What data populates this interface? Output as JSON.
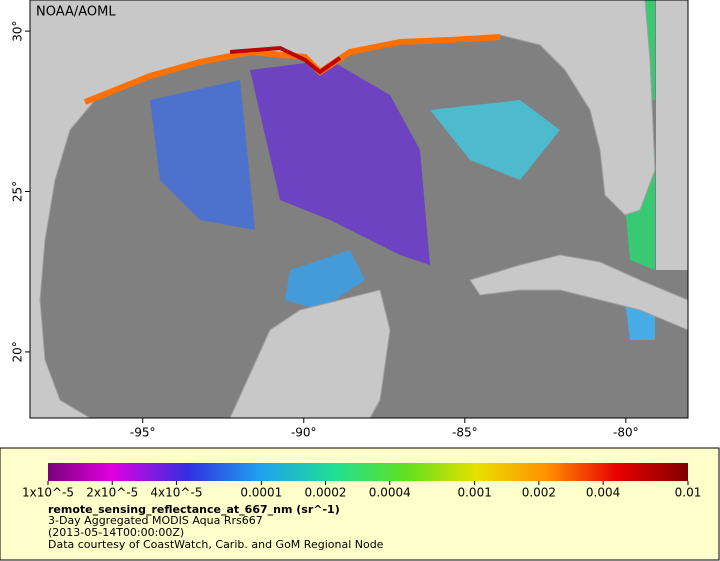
{
  "map": {
    "watermark": "NOAA/AOML",
    "xlim": [
      -98.5,
      -78.07
    ],
    "ylim": [
      17.94,
      30.97
    ],
    "xticks": [
      {
        "value": -95,
        "label": "-95°"
      },
      {
        "value": -90,
        "label": "-90°"
      },
      {
        "value": -85,
        "label": "-85°"
      },
      {
        "value": -80,
        "label": "-80°"
      }
    ],
    "yticks": [
      {
        "value": 20,
        "label": "20°"
      },
      {
        "value": 25,
        "label": "25°"
      },
      {
        "value": 30,
        "label": "30°"
      }
    ]
  },
  "legend": {
    "scale": "log",
    "lim": [
      1e-05,
      0.01
    ],
    "ticks": [
      {
        "value": 1e-05,
        "label": "1x10^-5"
      },
      {
        "value": 2e-05,
        "label": "2x10^-5"
      },
      {
        "value": 4e-05,
        "label": "4x10^-5"
      },
      0.0001,
      0.0002,
      0.0004,
      0.001,
      0.002,
      0.004,
      0.01
    ],
    "variable": "remote_sensing_reflectance_at_667_nm (sr^-1)",
    "lines": [
      "3-Day Aggregated MODIS Aqua Rrs667",
      "(2013-05-14T00:00:00Z)",
      "Data courtesy of CoastWatch, Carib. and GoM Regional Node"
    ]
  }
}
